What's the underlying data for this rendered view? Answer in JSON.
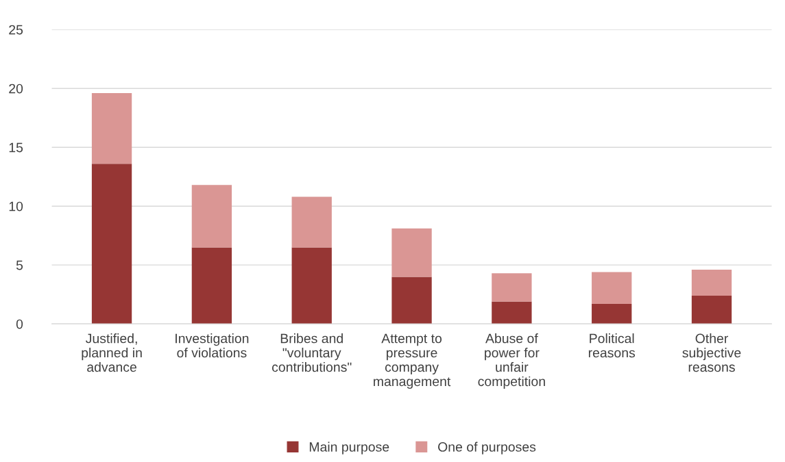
{
  "chart_data": {
    "type": "bar",
    "stacked": true,
    "categories": [
      "Justified,\nplanned in\nadvance",
      "Investigation\nof violations",
      "Bribes and\n\"voluntary\ncontributions\"",
      "Attempt to\npressure\ncompany\nmanagement",
      "Abuse of\npower for\nunfair\ncompetition",
      "Political\nreasons",
      "Other\nsubjective\nreasons"
    ],
    "series": [
      {
        "name": "Main purpose",
        "color": "#963634",
        "values": [
          13.6,
          6.5,
          6.5,
          4.0,
          1.9,
          1.7,
          2.4
        ]
      },
      {
        "name": "One of purposes",
        "color": "#da9694",
        "values": [
          6.0,
          5.3,
          4.3,
          4.1,
          2.4,
          2.7,
          2.2
        ]
      }
    ],
    "ylim": [
      0,
      25
    ],
    "yticks": [
      0,
      5,
      10,
      15,
      20,
      25
    ],
    "grid": "y",
    "legend": "bottom"
  }
}
